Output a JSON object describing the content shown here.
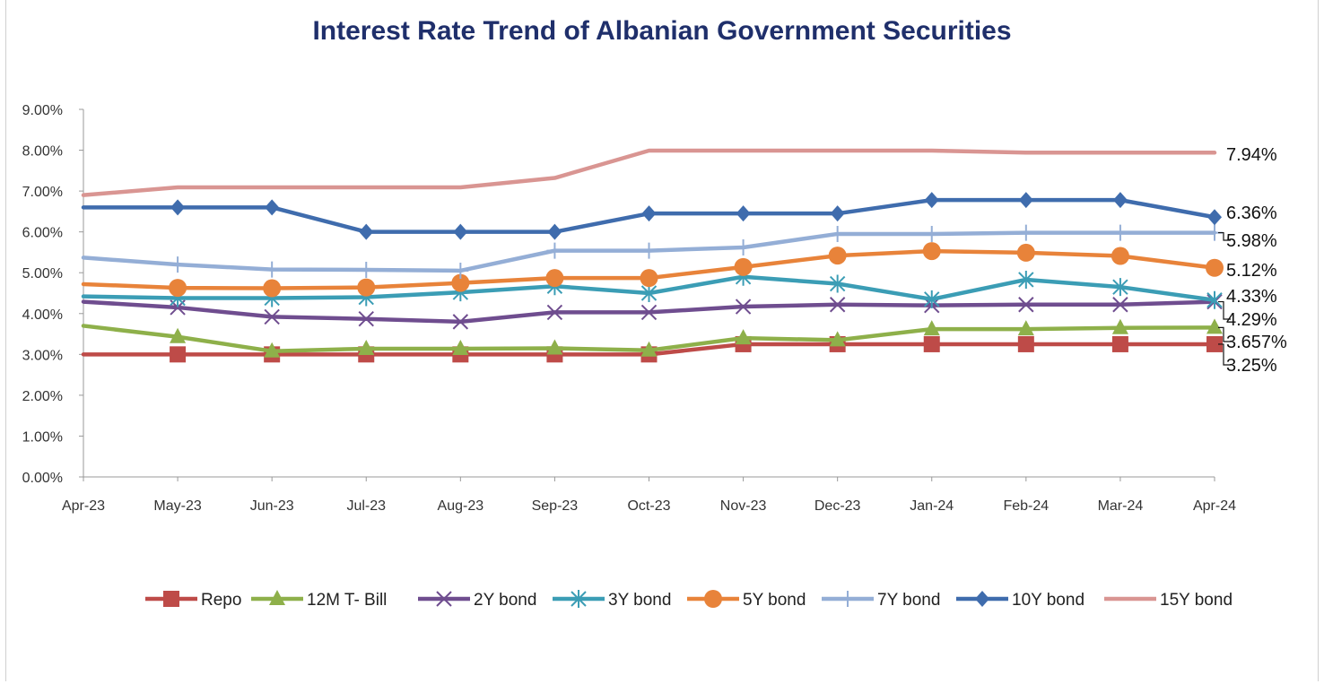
{
  "chart_data": {
    "type": "line",
    "title": "Interest Rate Trend of Albanian Government Securities",
    "xlabel": "",
    "ylabel": "",
    "x": [
      "Apr-23",
      "May-23",
      "Jun-23",
      "Jul-23",
      "Aug-23",
      "Sep-23",
      "Oct-23",
      "Nov-23",
      "Dec-23",
      "Jan-24",
      "Feb-24",
      "Mar-24",
      "Apr-24"
    ],
    "ylim": [
      0,
      9
    ],
    "yticks": [
      "0.00%",
      "1.00%",
      "2.00%",
      "3.00%",
      "4.00%",
      "5.00%",
      "6.00%",
      "7.00%",
      "8.00%",
      "9.00%"
    ],
    "grid": false,
    "legend_position": "bottom",
    "series": [
      {
        "name": "Repo",
        "color": "#be4b48",
        "marker": "square",
        "values": [
          3.0,
          3.0,
          3.0,
          3.0,
          3.0,
          3.0,
          3.0,
          3.25,
          3.25,
          3.25,
          3.25,
          3.25,
          3.25
        ],
        "end_label": "3.25%"
      },
      {
        "name": "12M T- Bill",
        "color": "#8eb04a",
        "marker": "triangle",
        "values": [
          3.7,
          3.43,
          3.08,
          3.14,
          3.14,
          3.15,
          3.1,
          3.4,
          3.35,
          3.62,
          3.62,
          3.65,
          3.657
        ],
        "end_label": "3.657%"
      },
      {
        "name": "2Y bond",
        "color": "#6f4d8f",
        "marker": "x",
        "values": [
          4.29,
          4.15,
          3.92,
          3.87,
          3.8,
          4.03,
          4.03,
          4.17,
          4.22,
          4.2,
          4.22,
          4.22,
          4.29
        ],
        "end_label": "4.29%"
      },
      {
        "name": "3Y bond",
        "color": "#3b9db5",
        "marker": "asterisk",
        "values": [
          4.42,
          4.38,
          4.38,
          4.4,
          4.52,
          4.67,
          4.5,
          4.9,
          4.73,
          4.35,
          4.83,
          4.65,
          4.33
        ],
        "end_label": "4.33%"
      },
      {
        "name": "5Y bond",
        "color": "#e8833a",
        "marker": "circle",
        "values": [
          4.72,
          4.63,
          4.62,
          4.64,
          4.75,
          4.87,
          4.87,
          5.14,
          5.42,
          5.53,
          5.49,
          5.41,
          5.12
        ],
        "end_label": "5.12%"
      },
      {
        "name": "7Y bond",
        "color": "#94aed6",
        "marker": "plus",
        "values": [
          5.37,
          5.2,
          5.08,
          5.07,
          5.05,
          5.54,
          5.54,
          5.62,
          5.95,
          5.95,
          5.98,
          5.98,
          5.98
        ],
        "end_label": "5.98%"
      },
      {
        "name": "10Y bond",
        "color": "#3f6cad",
        "marker": "diamond",
        "values": [
          6.6,
          6.6,
          6.6,
          6.0,
          6.0,
          6.0,
          6.45,
          6.45,
          6.45,
          6.78,
          6.78,
          6.78,
          6.36
        ],
        "end_label": "6.36%"
      },
      {
        "name": "15Y bond",
        "color": "#d99592",
        "marker": "none",
        "values": [
          6.9,
          7.09,
          7.09,
          7.09,
          7.09,
          7.32,
          7.99,
          7.99,
          7.99,
          7.99,
          7.94,
          7.94,
          7.94
        ],
        "end_label": "7.94%"
      }
    ]
  }
}
